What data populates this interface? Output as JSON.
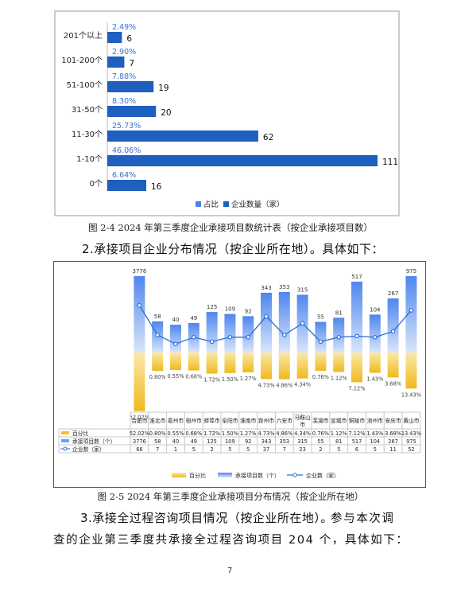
{
  "chart_data": [
    {
      "type": "bar",
      "orientation": "horizontal",
      "categories": [
        "201个以上",
        "101-200个",
        "51-100个",
        "31-50个",
        "11-30个",
        "1-10个",
        "0个"
      ],
      "series": [
        {
          "name": "占比",
          "values": [
            2.49,
            2.9,
            7.88,
            8.3,
            25.73,
            46.06,
            6.64
          ],
          "labels": [
            "2.49%",
            "2.90%",
            "7.88%",
            "8.30%",
            "25.73%",
            "46.06%",
            "6.64%"
          ],
          "color": "#4f81e8"
        },
        {
          "name": "企业数量（家）",
          "values": [
            6,
            7,
            19,
            20,
            62,
            111,
            16
          ],
          "color": "#1f5fbf"
        }
      ],
      "legend": "bottom"
    },
    {
      "type": "bar",
      "categories": [
        "合肥市",
        "淮北市",
        "亳州市",
        "宿州市",
        "蚌埠市",
        "阜阳市",
        "淮南市",
        "滁州市",
        "六安市",
        "马鞍山市",
        "芜湖市",
        "宣城市",
        "铜陵市",
        "池州市",
        "安庆市",
        "黄山市"
      ],
      "series": [
        {
          "name": "百分比",
          "values": [
            52.02,
            0.8,
            0.55,
            0.68,
            1.72,
            1.5,
            1.27,
            4.73,
            4.86,
            4.34,
            0.76,
            1.12,
            7.12,
            1.43,
            3.68,
            13.43
          ],
          "labels": [
            "52.02%",
            "0.80%",
            "0.55%",
            "0.68%",
            "1.72%",
            "1.50%",
            "1.27%",
            "4.73%",
            "4.86%",
            "4.34%",
            "0.76%",
            "1.12%",
            "7.12%",
            "1.43%",
            "3.68%",
            "13.43%"
          ],
          "color": "#f2c12e"
        },
        {
          "name": "承接项目数（个）",
          "values": [
            3776,
            58,
            40,
            49,
            125,
            109,
            92,
            343,
            353,
            315,
            55,
            81,
            517,
            104,
            267,
            975
          ],
          "color": "#6f9ef0"
        },
        {
          "name": "企业数（家）",
          "type": "line",
          "values": [
            66,
            7,
            1,
            5,
            2,
            5,
            5,
            37,
            7,
            23,
            2,
            5,
            6,
            5,
            11,
            52
          ],
          "color": "#2f6fd6"
        }
      ],
      "legend": "bottom",
      "table_headers": [
        "百分比",
        "承接项目数（个）",
        "企业数（家）"
      ],
      "table_rows": [
        [
          "52.02%",
          "0.80%",
          "0.55%",
          "0.68%",
          "1.72%",
          "1.50%",
          "1.27%",
          "4.73%",
          "4.86%",
          "4.34%",
          "0.76%",
          "1.12%",
          "7.12%",
          "1.43%",
          "3.68%",
          "13.43%"
        ],
        [
          "3776",
          "58",
          "40",
          "49",
          "125",
          "109",
          "92",
          "343",
          "353",
          "315",
          "55",
          "81",
          "517",
          "104",
          "267",
          "975"
        ],
        [
          "66",
          "7",
          "1",
          "5",
          "2",
          "5",
          "5",
          "37",
          "7",
          "23",
          "2",
          "5",
          "6",
          "5",
          "11",
          "52"
        ]
      ]
    }
  ],
  "text": {
    "caption1": "图 2-4   2024 年第三季度企业承接项目数统计表（按企业承接项目数）",
    "heading2": "2.承接项目企业分布情况（按企业所在地）。具体如下：",
    "caption2": "图 2-5   2024 年第三季度企业承接项目分布情况（按企业所在地）",
    "heading3": "3.承接全过程咨询项目情况（按企业所在地）。",
    "para3a": "参与本次调",
    "para3b": "查的企业第三季度共承接全过程咨询项目 204 个，具体如下：",
    "page_number": "7"
  }
}
